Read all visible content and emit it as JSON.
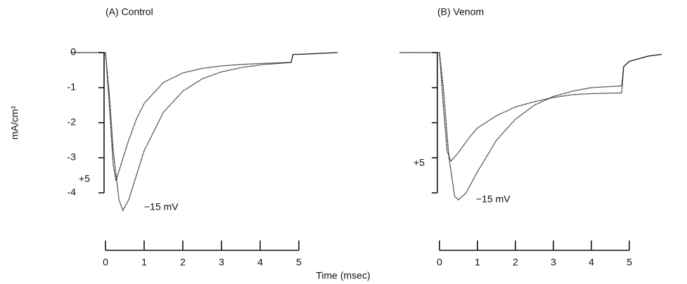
{
  "ylabel": "mA/cm²",
  "xlabel": "Time (msec)",
  "chart_data": [
    {
      "type": "line",
      "title": "(A) Control",
      "xlim": [
        -1,
        6
      ],
      "ylim": [
        -4.6,
        0.4
      ],
      "xticks": [
        0,
        1,
        2,
        3,
        4,
        5
      ],
      "yticks": [
        0,
        -1,
        -2,
        -3,
        -4
      ],
      "show_ytick_labels": true,
      "annotations": [
        "+5",
        "−15 mV"
      ],
      "series": [
        {
          "name": "+5",
          "color": "#111111",
          "x": [
            -0.9,
            0,
            0.1,
            0.2,
            0.27,
            0.4,
            0.6,
            0.8,
            1,
            1.5,
            2,
            2.5,
            3,
            3.5,
            4,
            4.8,
            4.85,
            5,
            6
          ],
          "values": [
            0,
            0,
            -1.5,
            -3.2,
            -3.65,
            -3.2,
            -2.5,
            -1.9,
            -1.45,
            -0.85,
            -0.58,
            -0.45,
            -0.38,
            -0.34,
            -0.31,
            -0.28,
            -0.05,
            -0.05,
            0
          ]
        },
        {
          "name": "−15 mV",
          "color": "#111111",
          "x": [
            -0.9,
            0,
            0.1,
            0.2,
            0.35,
            0.45,
            0.6,
            0.8,
            1,
            1.5,
            2,
            2.5,
            3,
            3.5,
            4,
            4.8,
            4.85,
            5,
            6
          ],
          "values": [
            0,
            0,
            -1.2,
            -2.8,
            -4.2,
            -4.5,
            -4.2,
            -3.5,
            -2.8,
            -1.7,
            -1.1,
            -0.75,
            -0.55,
            -0.43,
            -0.35,
            -0.28,
            -0.05,
            -0.05,
            0
          ]
        }
      ]
    },
    {
      "type": "line",
      "title": "(B) Venom",
      "xlim": [
        -1,
        6
      ],
      "ylim": [
        -4.6,
        0.4
      ],
      "xticks": [
        0,
        1,
        2,
        3,
        4,
        5
      ],
      "yticks": [
        0,
        -1,
        -2,
        -3,
        -4
      ],
      "show_ytick_labels": false,
      "annotations": [
        "+5",
        "−15 mV"
      ],
      "series": [
        {
          "name": "+5",
          "color": "#111111",
          "x": [
            -1.05,
            0,
            0.1,
            0.2,
            0.3,
            0.5,
            0.8,
            1,
            1.5,
            2,
            2.5,
            3,
            3.5,
            4,
            4.8,
            4.85,
            5,
            5.5,
            5.85
          ],
          "values": [
            0,
            0,
            -1.5,
            -2.8,
            -3.1,
            -2.85,
            -2.4,
            -2.15,
            -1.8,
            -1.55,
            -1.4,
            -1.28,
            -1.2,
            -1.17,
            -1.15,
            -0.4,
            -0.25,
            -0.1,
            -0.05
          ]
        },
        {
          "name": "−15 mV",
          "color": "#111111",
          "x": [
            -1.05,
            0,
            0.1,
            0.25,
            0.4,
            0.5,
            0.7,
            1,
            1.5,
            2,
            2.5,
            3,
            3.5,
            4,
            4.8,
            4.85,
            5,
            5.5,
            5.85
          ],
          "values": [
            0,
            0,
            -1,
            -3,
            -4.1,
            -4.2,
            -4,
            -3.4,
            -2.5,
            -1.9,
            -1.5,
            -1.25,
            -1.1,
            -1,
            -0.95,
            -0.4,
            -0.25,
            -0.1,
            -0.05
          ]
        }
      ]
    }
  ]
}
